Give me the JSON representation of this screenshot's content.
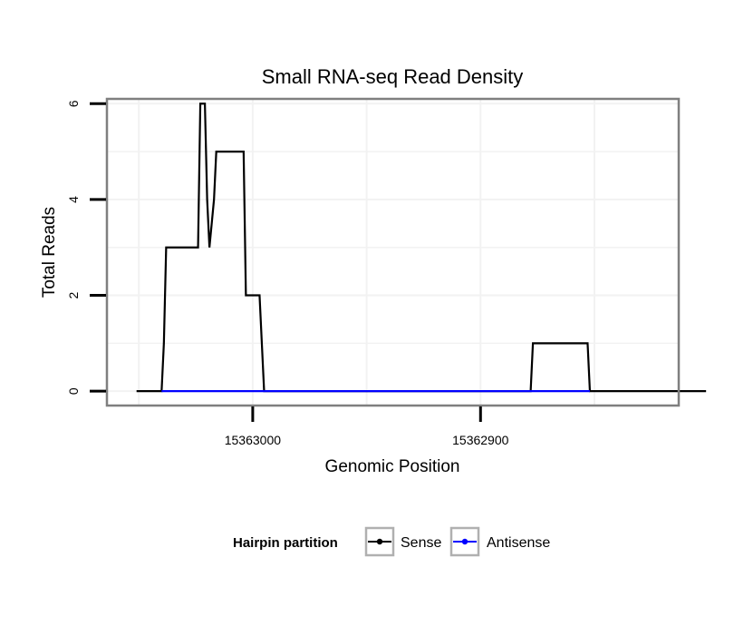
{
  "chart_data": {
    "type": "line",
    "title": "Small RNA-seq Read Density",
    "xlabel": "Genomic Position",
    "ylabel": "Total Reads",
    "xlim": [
      15363064,
      15362813
    ],
    "ylim": [
      -0.3,
      6.1
    ],
    "x_reversed": true,
    "grid": true,
    "x_ticks": [
      15363000,
      15362900
    ],
    "x_tick_labels": [
      "15363000",
      "15362900"
    ],
    "y_ticks": [
      0,
      2,
      4,
      6
    ],
    "y_tick_labels": [
      "0",
      "2",
      "4",
      "6"
    ],
    "legend": {
      "title": "Hairpin partition",
      "position": "bottom",
      "entries": [
        "Sense",
        "Antisense"
      ]
    },
    "series": [
      {
        "name": "Sense",
        "color": "#000000",
        "points": [
          [
            15363051,
            0
          ],
          [
            15363040,
            0
          ],
          [
            15363039,
            1
          ],
          [
            15363038,
            3
          ],
          [
            15363024,
            3
          ],
          [
            15363023,
            6
          ],
          [
            15363021,
            6
          ],
          [
            15363020,
            4
          ],
          [
            15363019,
            3
          ],
          [
            15363017,
            4
          ],
          [
            15363016,
            5
          ],
          [
            15363004,
            5
          ],
          [
            15363003,
            2
          ],
          [
            15362997,
            2
          ],
          [
            15362995,
            0
          ],
          [
            15362878,
            0
          ],
          [
            15362877,
            1
          ],
          [
            15362853,
            1
          ],
          [
            15362852,
            0
          ],
          [
            15362801,
            0
          ]
        ]
      },
      {
        "name": "Antisense",
        "color": "#0000ff",
        "points": [
          [
            15363040,
            0
          ],
          [
            15362995,
            0
          ],
          [
            15362877,
            0
          ],
          [
            15362852,
            0
          ]
        ]
      }
    ]
  }
}
